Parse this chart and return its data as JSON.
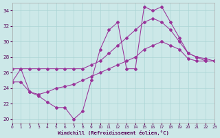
{
  "xlabel": "Windchill (Refroidissement éolien,°C)",
  "xlim": [
    0,
    23
  ],
  "ylim": [
    19.5,
    35.0
  ],
  "yticks": [
    20,
    22,
    24,
    26,
    28,
    30,
    32,
    34
  ],
  "xticks": [
    0,
    1,
    2,
    3,
    4,
    5,
    6,
    7,
    8,
    9,
    10,
    11,
    12,
    13,
    14,
    15,
    16,
    17,
    18,
    19,
    20,
    21,
    22,
    23
  ],
  "bg_color": "#cce8e8",
  "grid_color": "#aad4d4",
  "line_color": "#993399",
  "line1_x": [
    0,
    1,
    2,
    3,
    4,
    5,
    6,
    7,
    8,
    9,
    10,
    11,
    12,
    13,
    14,
    15,
    16,
    17,
    18,
    19,
    20,
    21,
    22,
    23
  ],
  "line1_y": [
    24.8,
    26.5,
    23.5,
    23.0,
    22.2,
    21.5,
    21.5,
    20.0,
    21.0,
    25.0,
    29.0,
    31.5,
    32.5,
    26.5,
    26.5,
    34.5,
    34.0,
    34.5,
    32.5,
    30.5,
    28.5,
    28.0,
    27.5,
    27.5
  ],
  "line2_x": [
    0,
    1,
    2,
    3,
    4,
    5,
    6,
    7,
    8,
    9,
    10,
    11,
    12,
    13,
    14,
    15,
    16,
    17,
    18,
    19,
    20,
    21,
    22,
    23
  ],
  "line2_y": [
    26.5,
    26.5,
    26.5,
    26.5,
    26.5,
    26.5,
    26.5,
    26.5,
    26.5,
    27.0,
    27.5,
    28.5,
    29.5,
    30.5,
    31.5,
    32.5,
    33.0,
    32.5,
    31.5,
    30.0,
    28.5,
    28.0,
    27.8,
    27.5
  ],
  "line3_x": [
    0,
    1,
    2,
    3,
    4,
    5,
    6,
    7,
    8,
    9,
    10,
    11,
    12,
    13,
    14,
    15,
    16,
    17,
    18,
    19,
    20,
    21,
    22,
    23
  ],
  "line3_y": [
    24.8,
    24.8,
    23.5,
    23.2,
    23.5,
    24.0,
    24.2,
    24.5,
    25.0,
    25.5,
    26.0,
    26.5,
    27.0,
    27.5,
    28.0,
    29.0,
    29.5,
    30.0,
    29.5,
    29.0,
    27.8,
    27.5,
    27.5,
    27.5
  ]
}
